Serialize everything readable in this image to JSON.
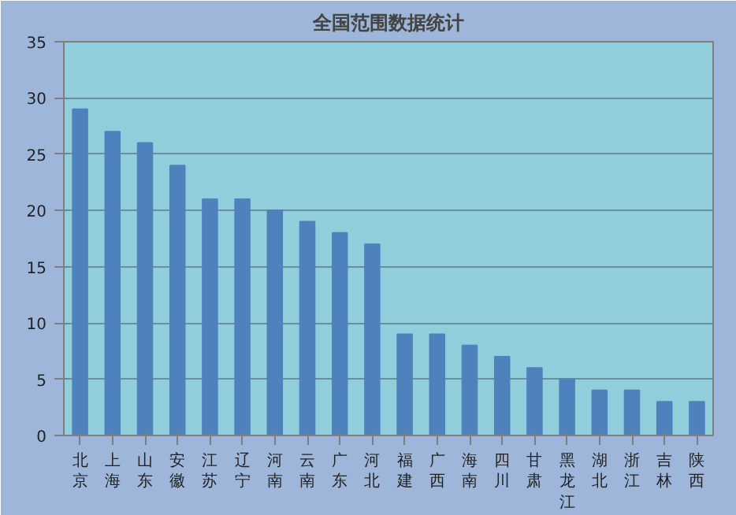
{
  "chart_data": {
    "type": "bar",
    "title": "全国范围数据统计",
    "categories": [
      "北京",
      "上海",
      "山东",
      "安徽",
      "江苏",
      "辽宁",
      "河南",
      "云南",
      "广东",
      "河北",
      "福建",
      "广西",
      "海南",
      "四川",
      "甘肃",
      "黑龙江",
      "湖北",
      "浙江",
      "吉林",
      "陕西"
    ],
    "values": [
      29,
      27,
      26,
      24,
      21,
      21,
      20,
      19,
      18,
      17,
      9,
      9,
      8,
      7,
      6,
      5,
      4,
      4,
      3,
      3
    ],
    "color": "#4f81bd",
    "ylim": [
      0,
      35
    ],
    "yticks": [
      0,
      5,
      10,
      15,
      20,
      25,
      30,
      35
    ],
    "grid": "y"
  }
}
